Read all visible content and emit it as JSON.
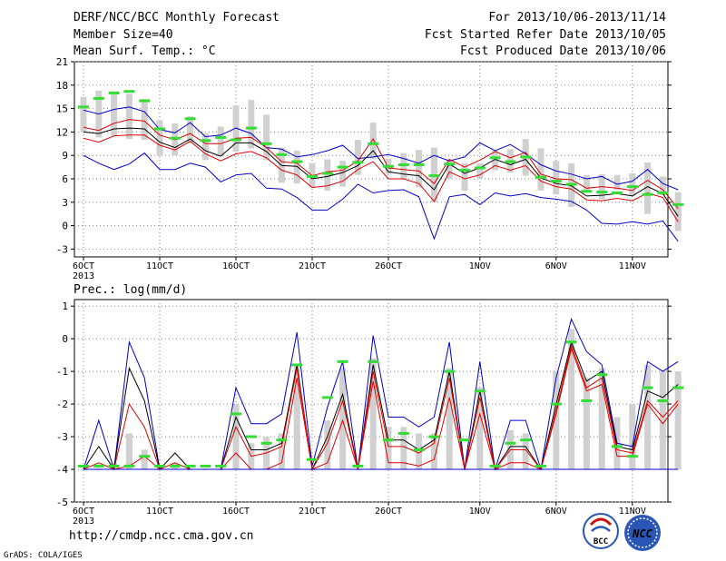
{
  "header": {
    "line1_left": "DERF/NCC/BCC Monthly Forecast",
    "line2_left": "Member Size=40",
    "line3_left": "Mean Surf. Temp.: °C",
    "line1_right": "For 2013/10/06-2013/11/14",
    "line2_right": "Fcst Started Refer Date 2013/10/05",
    "line3_right": "Fcst Produced Date 2013/10/06"
  },
  "footer": {
    "url": "http://cmdp.ncc.cma.gov.cn",
    "grads": "GrADS: COLA/IGES",
    "logo_bcc": "BCC",
    "logo_ncc": "NCC"
  },
  "colors": {
    "bar": "#d0d0d0",
    "median": "#000000",
    "ensemble": "#e00000",
    "extreme": "#0000cc",
    "marker": "#33dd33",
    "grid": "#808080"
  },
  "chart_data": [
    {
      "type": "line",
      "title": "Mean Surf. Temp.: °C",
      "ylim": [
        -4,
        21
      ],
      "yticks": [
        -3,
        0,
        3,
        6,
        9,
        12,
        15,
        18,
        21
      ],
      "xtick_labels": [
        {
          "day": 0,
          "label": "6OCT",
          "sub": "2013"
        },
        {
          "day": 5,
          "label": "11OCT"
        },
        {
          "day": 10,
          "label": "16OCT"
        },
        {
          "day": 15,
          "label": "21OCT"
        },
        {
          "day": 20,
          "label": "26OCT"
        },
        {
          "day": 26,
          "label": "1NOV"
        },
        {
          "day": 31,
          "label": "6NOV"
        },
        {
          "day": 36,
          "label": "11NOV"
        }
      ],
      "x_days": [
        0,
        1,
        2,
        3,
        4,
        5,
        6,
        7,
        8,
        9,
        10,
        11,
        12,
        13,
        14,
        15,
        16,
        17,
        18,
        19,
        20,
        21,
        22,
        23,
        24,
        25,
        26,
        27,
        28,
        29,
        30,
        31,
        32,
        33,
        34,
        35,
        36,
        37,
        38,
        39
      ],
      "series": [
        {
          "role": "upper-extreme",
          "values": [
            14.8,
            14.3,
            14.9,
            15.2,
            14.6,
            12.3,
            11.9,
            13.2,
            11.4,
            11.6,
            12.5,
            11.8,
            10.0,
            9.8,
            8.8,
            9.1,
            9.6,
            10.3,
            8.6,
            8.8,
            9.1,
            8.6,
            8.0,
            9.0,
            8.3,
            8.8,
            10.6,
            9.6,
            10.4,
            9.2,
            7.8,
            7.0,
            6.6,
            6.0,
            6.3,
            5.3,
            5.7,
            7.2,
            5.4,
            4.6
          ]
        },
        {
          "role": "upper-ensemble",
          "values": [
            12.6,
            12.2,
            13.1,
            13.6,
            13.4,
            11.6,
            11.0,
            11.8,
            10.5,
            10.5,
            11.2,
            11.3,
            10.0,
            8.2,
            8.0,
            6.4,
            6.9,
            7.1,
            8.3,
            11.1,
            7.4,
            7.2,
            7.0,
            5.4,
            8.5,
            7.5,
            8.4,
            9.5,
            8.7,
            9.4,
            6.6,
            6.0,
            5.9,
            4.8,
            5.0,
            4.8,
            4.5,
            5.8,
            4.6,
            2.2
          ]
        },
        {
          "role": "median",
          "values": [
            12.0,
            11.8,
            12.4,
            12.5,
            12.4,
            10.7,
            10.0,
            11.1,
            9.6,
            8.9,
            10.6,
            10.6,
            9.5,
            7.7,
            7.6,
            6.0,
            6.3,
            6.8,
            7.7,
            9.6,
            6.9,
            6.6,
            6.4,
            4.6,
            7.9,
            6.7,
            7.4,
            8.5,
            7.8,
            8.5,
            6.1,
            5.4,
            5.1,
            3.8,
            3.9,
            4.1,
            3.8,
            5.0,
            4.1,
            1.2
          ]
        },
        {
          "role": "lower-ensemble",
          "values": [
            11.2,
            10.7,
            11.5,
            11.6,
            11.6,
            10.3,
            9.7,
            10.8,
            9.2,
            8.3,
            9.2,
            9.5,
            8.7,
            7.1,
            6.5,
            4.9,
            5.1,
            5.7,
            7.2,
            8.2,
            6.0,
            6.0,
            5.4,
            3.1,
            6.9,
            6.0,
            6.5,
            7.7,
            7.1,
            7.7,
            5.7,
            5.0,
            4.7,
            3.3,
            3.2,
            3.5,
            3.2,
            4.2,
            3.6,
            0.5
          ]
        },
        {
          "role": "lower-extreme",
          "values": [
            9.0,
            8.0,
            7.2,
            7.9,
            9.3,
            7.2,
            7.2,
            8.0,
            7.5,
            5.6,
            6.5,
            6.7,
            4.8,
            4.7,
            3.6,
            2.0,
            2.0,
            3.4,
            5.3,
            4.2,
            4.5,
            4.6,
            3.7,
            -1.7,
            3.7,
            4.0,
            2.7,
            4.2,
            3.8,
            4.1,
            3.6,
            3.4,
            3.1,
            2.0,
            0.3,
            0.2,
            0.5,
            0.2,
            0.6,
            -2.0
          ]
        },
        {
          "role": "climatology-marker",
          "values": [
            15.2,
            16.3,
            17.0,
            17.2,
            16.0,
            12.4,
            11.2,
            13.7,
            10.9,
            11.3,
            11.0,
            12.5,
            10.5,
            9.1,
            8.2,
            6.3,
            6.7,
            7.5,
            8.1,
            10.5,
            7.6,
            7.8,
            7.8,
            6.4,
            7.9,
            7.1,
            7.4,
            8.7,
            8.2,
            8.8,
            6.2,
            5.7,
            5.3,
            4.4,
            4.3,
            4.2,
            5.0,
            4.0,
            4.2,
            2.7
          ]
        }
      ],
      "bars": [
        [
          12.0,
          16.5
        ],
        [
          11.3,
          17.3
        ],
        [
          11.5,
          17.0
        ],
        [
          11.1,
          16.9
        ],
        [
          11.0,
          16.2
        ],
        [
          9.0,
          13.5
        ],
        [
          9.0,
          13.1
        ],
        [
          10.6,
          14.0
        ],
        [
          8.4,
          11.8
        ],
        [
          8.9,
          12.7
        ],
        [
          9.5,
          15.4
        ],
        [
          9.9,
          16.1
        ],
        [
          8.4,
          14.2
        ],
        [
          5.5,
          10.0
        ],
        [
          5.4,
          9.6
        ],
        [
          4.9,
          8.0
        ],
        [
          4.5,
          8.5
        ],
        [
          5.0,
          8.3
        ],
        [
          6.5,
          11.0
        ],
        [
          8.5,
          13.2
        ],
        [
          6.6,
          8.6
        ],
        [
          6.0,
          9.3
        ],
        [
          4.9,
          9.7
        ],
        [
          3.0,
          10.0
        ],
        [
          6.0,
          8.5
        ],
        [
          4.5,
          8.0
        ],
        [
          6.1,
          8.0
        ],
        [
          7.1,
          9.6
        ],
        [
          6.8,
          9.8
        ],
        [
          6.4,
          11.1
        ],
        [
          4.5,
          9.9
        ],
        [
          4.0,
          8.3
        ],
        [
          2.4,
          8.0
        ],
        [
          4.3,
          6.5
        ],
        [
          3.4,
          6.6
        ],
        [
          4.6,
          6.5
        ],
        [
          3.8,
          6.7
        ],
        [
          1.5,
          8.1
        ],
        [
          3.9,
          6.3
        ],
        [
          -0.7,
          4.3
        ]
      ]
    },
    {
      "type": "line",
      "title": "Prec.: log(mm/d)",
      "ylim": [
        -5,
        1.2
      ],
      "yticks": [
        -5,
        -4,
        -3,
        -2,
        -1,
        0,
        1
      ],
      "xtick_labels": [
        {
          "day": 0,
          "label": "6OCT",
          "sub": "2013"
        },
        {
          "day": 5,
          "label": "11OCT"
        },
        {
          "day": 10,
          "label": "16OCT"
        },
        {
          "day": 15,
          "label": "21OCT"
        },
        {
          "day": 20,
          "label": "26OCT"
        },
        {
          "day": 26,
          "label": "1NOV"
        },
        {
          "day": 31,
          "label": "6NOV"
        },
        {
          "day": 36,
          "label": "11NOV"
        }
      ],
      "x_days": [
        0,
        1,
        2,
        3,
        4,
        5,
        6,
        7,
        8,
        9,
        10,
        11,
        12,
        13,
        14,
        15,
        16,
        17,
        18,
        19,
        20,
        21,
        22,
        23,
        24,
        25,
        26,
        27,
        28,
        29,
        30,
        31,
        32,
        33,
        34,
        35,
        36,
        37,
        38,
        39
      ],
      "series": [
        {
          "role": "upper-extreme",
          "values": [
            -4.0,
            -2.5,
            -4.0,
            -0.1,
            -1.2,
            -4.0,
            -4.0,
            -4.0,
            -4.0,
            -4.0,
            -1.5,
            -2.6,
            -2.6,
            -2.3,
            0.2,
            -3.9,
            -2.1,
            -0.7,
            -4.0,
            0.1,
            -2.4,
            -2.4,
            -2.7,
            -2.4,
            -0.1,
            -4.0,
            -0.7,
            -4.0,
            -2.5,
            -2.5,
            -4.0,
            -1.2,
            0.6,
            -0.4,
            -0.8,
            -3.2,
            -3.3,
            -0.7,
            -1.0,
            -0.7
          ]
        },
        {
          "role": "median",
          "values": [
            -4.0,
            -3.3,
            -4.0,
            -0.9,
            -1.9,
            -4.0,
            -3.5,
            -4.0,
            -4.0,
            -4.0,
            -2.4,
            -3.4,
            -3.4,
            -3.2,
            -0.8,
            -4.0,
            -3.0,
            -1.7,
            -4.0,
            -0.8,
            -3.1,
            -3.1,
            -3.4,
            -3.1,
            -1.0,
            -4.0,
            -1.6,
            -4.0,
            -3.3,
            -3.3,
            -4.0,
            -2.0,
            -0.1,
            -1.3,
            -1.0,
            -3.3,
            -3.4,
            -1.6,
            -1.8,
            -1.4
          ]
        },
        {
          "role": "upper-ensemble",
          "values": [
            -4.0,
            -3.8,
            -4.0,
            -2.0,
            -2.7,
            -4.0,
            -3.8,
            -4.0,
            -4.0,
            -4.0,
            -2.7,
            -3.6,
            -3.5,
            -3.3,
            -0.9,
            -4.0,
            -3.2,
            -1.9,
            -4.0,
            -1.0,
            -3.3,
            -3.3,
            -3.5,
            -3.2,
            -1.2,
            -4.0,
            -1.8,
            -4.0,
            -3.4,
            -3.4,
            -4.0,
            -2.2,
            -0.2,
            -1.5,
            -1.2,
            -3.4,
            -3.5,
            -1.9,
            -2.4,
            -1.9
          ]
        },
        {
          "role": "lower-ensemble",
          "values": [
            -4.0,
            -4.0,
            -4.0,
            -3.9,
            -3.6,
            -4.0,
            -4.0,
            -4.0,
            -4.0,
            -4.0,
            -3.5,
            -4.0,
            -4.0,
            -3.8,
            -1.2,
            -4.0,
            -3.8,
            -2.5,
            -4.0,
            -1.3,
            -3.8,
            -3.8,
            -3.9,
            -3.7,
            -1.8,
            -4.0,
            -2.3,
            -4.0,
            -3.8,
            -3.8,
            -4.0,
            -2.3,
            -0.3,
            -1.6,
            -1.4,
            -3.6,
            -3.6,
            -2.0,
            -2.6,
            -2.0
          ]
        },
        {
          "role": "lower-extreme",
          "values": [
            -4.0,
            -4.0,
            -4.0,
            -4.0,
            -4.0,
            -4.0,
            -4.0,
            -4.0,
            -4.0,
            -4.0,
            -4.0,
            -4.0,
            -4.0,
            -4.0,
            -4.0,
            -4.0,
            -4.0,
            -4.0,
            -4.0,
            -4.0,
            -4.0,
            -4.0,
            -4.0,
            -4.0,
            -4.0,
            -4.0,
            -4.0,
            -4.0,
            -4.0,
            -4.0,
            -4.0,
            -4.0,
            -4.0,
            -4.0,
            -4.0,
            -4.0,
            -4.0,
            -4.0,
            -4.0,
            -4.0
          ]
        },
        {
          "role": "climatology-marker",
          "values": [
            -3.9,
            -3.9,
            -3.9,
            -3.9,
            -3.6,
            -3.9,
            -3.9,
            -3.9,
            -3.9,
            -3.9,
            -2.3,
            -3.0,
            -3.2,
            -3.1,
            -0.8,
            -3.7,
            -1.8,
            -0.7,
            -3.9,
            -0.7,
            -3.1,
            -2.9,
            -3.4,
            -3.0,
            -1.0,
            -3.1,
            -1.6,
            -3.9,
            -3.2,
            -3.1,
            -3.9,
            -2.0,
            -0.1,
            -1.9,
            -1.1,
            -3.3,
            -3.6,
            -1.5,
            -1.9,
            -1.5
          ]
        }
      ],
      "bars": [
        [
          -4.0,
          -4.0
        ],
        [
          -4.0,
          -4.0
        ],
        [
          -4.0,
          -3.8
        ],
        [
          -4.0,
          -2.9
        ],
        [
          -4.0,
          -3.4
        ],
        [
          -4.0,
          -4.0
        ],
        [
          -4.0,
          -3.8
        ],
        [
          -4.0,
          -4.0
        ],
        [
          -4.0,
          -4.0
        ],
        [
          -4.0,
          -4.0
        ],
        [
          -4.0,
          -2.0
        ],
        [
          -4.0,
          -3.2
        ],
        [
          -4.0,
          -3.0
        ],
        [
          -4.0,
          -2.9
        ],
        [
          -4.0,
          -0.8
        ],
        [
          -4.0,
          -4.0
        ],
        [
          -4.0,
          -2.5
        ],
        [
          -4.0,
          -0.9
        ],
        [
          -4.0,
          -4.0
        ],
        [
          -4.0,
          -0.6
        ],
        [
          -4.0,
          -2.7
        ],
        [
          -4.0,
          -2.7
        ],
        [
          -4.0,
          -2.9
        ],
        [
          -4.0,
          -2.9
        ],
        [
          -4.0,
          -0.9
        ],
        [
          -4.0,
          -4.0
        ],
        [
          -4.0,
          -1.5
        ],
        [
          -4.0,
          -4.0
        ],
        [
          -4.0,
          -2.8
        ],
        [
          -4.0,
          -2.9
        ],
        [
          -4.0,
          -4.0
        ],
        [
          -4.0,
          -1.0
        ],
        [
          -4.0,
          0.3
        ],
        [
          -4.0,
          -1.2
        ],
        [
          -4.0,
          -0.9
        ],
        [
          -4.0,
          -2.4
        ],
        [
          -4.0,
          -2.0
        ],
        [
          -4.0,
          -0.8
        ],
        [
          -4.0,
          -1.0
        ],
        [
          -4.0,
          -1.0
        ]
      ]
    }
  ]
}
